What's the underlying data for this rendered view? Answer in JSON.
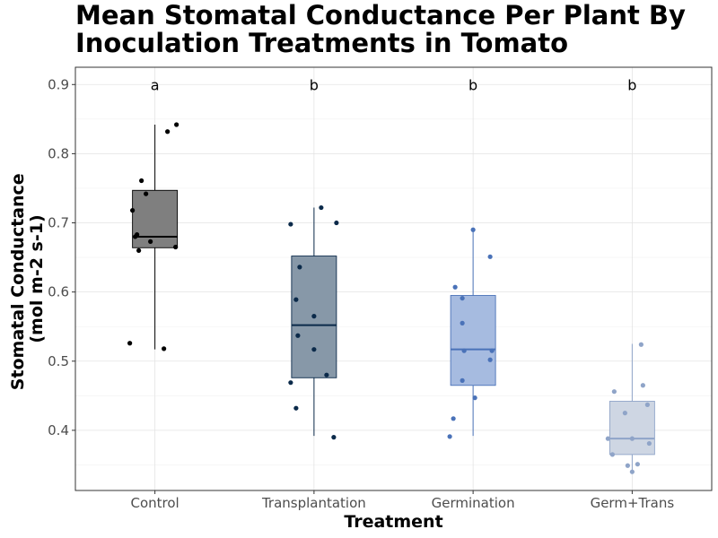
{
  "chart_data": {
    "type": "box",
    "title_lines": [
      "Mean Stomatal Conductance Per Plant By",
      "Inoculation Treatments in Tomato"
    ],
    "xlabel": "Treatment",
    "ylabel_lines": [
      "Stomatal Conductance",
      "(mol m-2 s-1)"
    ],
    "ylim": [
      0.313,
      0.925
    ],
    "y_ticks": [
      {
        "value": 0.4,
        "label": "0.4"
      },
      {
        "value": 0.5,
        "label": "0.5"
      },
      {
        "value": 0.6,
        "label": "0.6"
      },
      {
        "value": 0.7,
        "label": "0.7"
      },
      {
        "value": 0.8,
        "label": "0.8"
      },
      {
        "value": 0.9,
        "label": "0.9"
      }
    ],
    "grid": true,
    "groups": [
      {
        "category": "Control",
        "letter": "a",
        "color": "#7f7f7f",
        "point_color": "#000000",
        "min": 0.517,
        "q1": 0.664,
        "median": 0.68,
        "q3": 0.747,
        "max": 0.842,
        "points": [
          {
            "j": -0.25,
            "y": 0.718
          },
          {
            "j": -0.2,
            "y": 0.683
          },
          {
            "j": -0.15,
            "y": 0.761
          },
          {
            "j": -0.1,
            "y": 0.742
          },
          {
            "j": -0.05,
            "y": 0.673
          },
          {
            "j": -0.28,
            "y": 0.526
          },
          {
            "j": 0.1,
            "y": 0.518
          },
          {
            "j": 0.23,
            "y": 0.665
          },
          {
            "j": 0.14,
            "y": 0.832
          },
          {
            "j": 0.24,
            "y": 0.842
          },
          {
            "j": -0.18,
            "y": 0.66
          },
          {
            "j": -0.22,
            "y": 0.68
          }
        ]
      },
      {
        "category": "Transplantation",
        "letter": "b",
        "color": "#8798a8",
        "point_color": "#0b2a4a",
        "min": 0.392,
        "q1": 0.476,
        "median": 0.552,
        "q3": 0.652,
        "max": 0.722,
        "points": [
          {
            "j": -0.26,
            "y": 0.698
          },
          {
            "j": 0.08,
            "y": 0.722
          },
          {
            "j": 0.25,
            "y": 0.7
          },
          {
            "j": -0.16,
            "y": 0.636
          },
          {
            "j": -0.2,
            "y": 0.589
          },
          {
            "j": 0.0,
            "y": 0.565
          },
          {
            "j": -0.18,
            "y": 0.537
          },
          {
            "j": 0.0,
            "y": 0.517
          },
          {
            "j": -0.26,
            "y": 0.469
          },
          {
            "j": 0.14,
            "y": 0.48
          },
          {
            "j": -0.2,
            "y": 0.432
          },
          {
            "j": 0.22,
            "y": 0.39
          }
        ]
      },
      {
        "category": "Germination",
        "letter": "b",
        "color": "#a6bbe0",
        "point_color": "#4a72b8",
        "min": 0.392,
        "q1": 0.465,
        "median": 0.517,
        "q3": 0.595,
        "max": 0.69,
        "points": [
          {
            "j": 0.0,
            "y": 0.69
          },
          {
            "j": 0.19,
            "y": 0.651
          },
          {
            "j": -0.2,
            "y": 0.607
          },
          {
            "j": -0.12,
            "y": 0.591
          },
          {
            "j": -0.12,
            "y": 0.555
          },
          {
            "j": -0.1,
            "y": 0.515
          },
          {
            "j": 0.21,
            "y": 0.515
          },
          {
            "j": 0.19,
            "y": 0.502
          },
          {
            "j": -0.12,
            "y": 0.472
          },
          {
            "j": 0.02,
            "y": 0.447
          },
          {
            "j": -0.22,
            "y": 0.417
          },
          {
            "j": -0.26,
            "y": 0.391
          }
        ]
      },
      {
        "category": "Germ+Trans",
        "letter": "b",
        "color": "#ced6e3",
        "point_color": "#8fa4c8",
        "min": 0.34,
        "q1": 0.365,
        "median": 0.388,
        "q3": 0.442,
        "max": 0.525,
        "points": [
          {
            "j": 0.1,
            "y": 0.524
          },
          {
            "j": 0.12,
            "y": 0.465
          },
          {
            "j": -0.2,
            "y": 0.456
          },
          {
            "j": 0.17,
            "y": 0.437
          },
          {
            "j": -0.08,
            "y": 0.425
          },
          {
            "j": 0.0,
            "y": 0.388
          },
          {
            "j": -0.27,
            "y": 0.388
          },
          {
            "j": 0.19,
            "y": 0.381
          },
          {
            "j": -0.22,
            "y": 0.365
          },
          {
            "j": -0.05,
            "y": 0.349
          },
          {
            "j": 0.06,
            "y": 0.351
          },
          {
            "j": 0.0,
            "y": 0.34
          }
        ]
      }
    ]
  }
}
